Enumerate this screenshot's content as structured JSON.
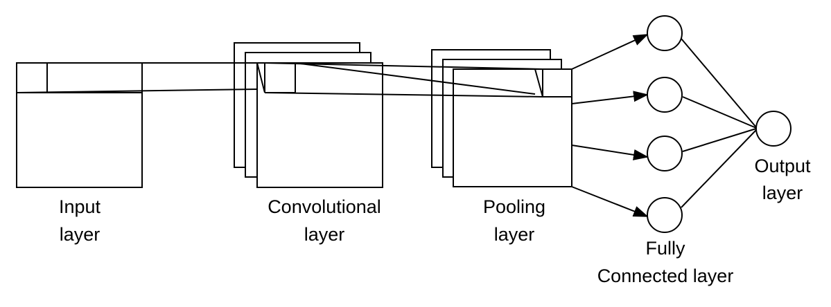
{
  "labels": {
    "input_line1": "Input",
    "input_line2": "layer",
    "conv_line1": "Convolutional",
    "conv_line2": "layer",
    "pool_line1": "Pooling",
    "pool_line2": "layer",
    "fc_line1": "Fully",
    "fc_line2": "Connected layer",
    "output_line1": "Output",
    "output_line2": "layer"
  },
  "colors": {
    "stroke": "#000000",
    "background": "#ffffff"
  },
  "icons": [
    "arrow-head-icon"
  ]
}
